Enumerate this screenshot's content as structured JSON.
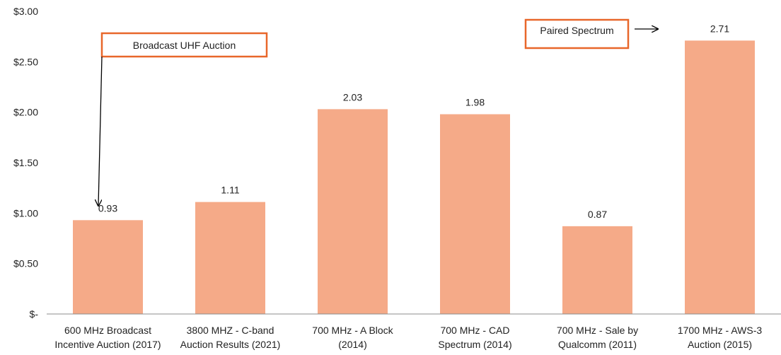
{
  "chart_data": {
    "type": "bar",
    "categories": [
      [
        "600 MHz Broadcast",
        "Incentive Auction (2017)"
      ],
      [
        "3800 MHZ - C-band",
        "Auction Results (2021)"
      ],
      [
        "700 MHz - A Block",
        "(2014)"
      ],
      [
        "700 MHz - CAD",
        "Spectrum (2014)"
      ],
      [
        "700 MHz - Sale by",
        "Qualcomm (2011)"
      ],
      [
        "1700 MHz - AWS-3",
        "Auction (2015)"
      ]
    ],
    "values": [
      0.93,
      1.11,
      2.03,
      1.98,
      0.87,
      2.71
    ],
    "data_labels": [
      "0.93",
      "1.11",
      "2.03",
      "1.98",
      "0.87",
      "2.71"
    ],
    "ylim": [
      0,
      3.0
    ],
    "yticks": [
      0,
      0.5,
      1.0,
      1.5,
      2.0,
      2.5,
      3.0
    ],
    "ytick_labels": [
      "$-",
      "$0.50",
      "$1.00",
      "$1.50",
      "$2.00",
      "$2.50",
      "$3.00"
    ],
    "title": "",
    "xlabel": "",
    "ylabel": "",
    "grid": false,
    "bar_color": "#f5aa88",
    "annotations": [
      {
        "text": "Broadcast UHF Auction",
        "points_to_category": 0
      },
      {
        "text": "Paired Spectrum",
        "points_to_category": 5
      }
    ],
    "annotation_border_color": "#e8672a",
    "axis_color": "#8c8c8c"
  }
}
